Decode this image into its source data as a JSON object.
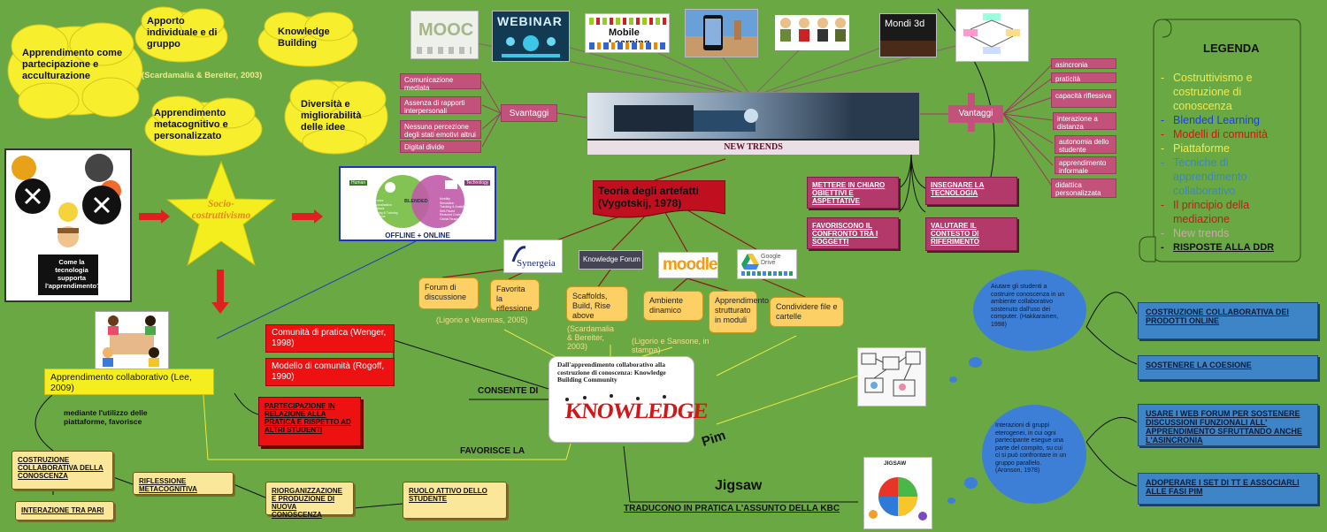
{
  "clouds": {
    "apprendimento_partecipazione": "Apprendimento come partecipazione e acculturazione",
    "apporto": "Apporto individuale e di gruppo",
    "knowledge_building": "Knowledge Building",
    "metacognitivo": "Apprendimento metacognitivo e personalizzato",
    "diversita": "Diversità e migliorabilità delle idee"
  },
  "citation_scardamalia": "(Scardamalia & Bereiter, 2003)",
  "intro_caption": "Come la tecnologia supporta l'apprendimento?",
  "star_label": "Socio-costruttivismo",
  "blended": {
    "left_header": "Human",
    "right_header": "Technology",
    "center": "BLENDED",
    "left_items": [
      "Instructor",
      "Personalization",
      "Feedback",
      "Planning & Tutoring",
      "Relevance",
      "Discipline"
    ],
    "right_items": [
      "Mobility",
      "Simulation",
      "Tracking & Analytics",
      "Self-Paced",
      "Reduced Costs",
      "Global Reach"
    ],
    "caption": "OFFLINE + ONLINE"
  },
  "trend_tiles": {
    "mooc": "MOOC",
    "webinar": "WEBINAR",
    "mobile_learning": "Mobile Learning",
    "mondi_3d": "Mondi 3d"
  },
  "new_trends_label": "NEW TRENDS",
  "svantaggi": {
    "label": "Svantaggi",
    "items": [
      "Comunicazione mediata",
      "Assenza di rapporti interpersonali",
      "Nessuna percezione degli stati emotivi altrui",
      "Digital divide"
    ]
  },
  "vantaggi": {
    "label": "Vantaggi",
    "items": [
      "asincronia",
      "praticità",
      "capacità riflessiva",
      "interazione a distanza",
      "autonomia dello studente",
      "apprendimento informale",
      "didattica personalizzata"
    ]
  },
  "mediation": [
    "METTERE IN CHIARO OBIETTIVI E ASPETTATIVE",
    "INSEGNARE LA TECNOLOGIA",
    "FAVORISCONO IL CONFRONTO TRA I SOGGETTI",
    "VALUTARE IL CONTESTO DI RIFERIMENTO"
  ],
  "teoria": "Teoria degli artefatti (Vygotskij, 1978)",
  "platforms": {
    "synergeia": "Synergeia",
    "knowledge_forum": "Knowledge Forum",
    "moodle": "moodle",
    "google_drive": "Google Drive"
  },
  "platform_features": [
    "Forum di discussione",
    "Favorita la riflessione",
    "Scaffolds, Build, Rise above",
    "Ambiente dinamico",
    "Apprendimento strutturato in moduli",
    "Condividere file e cartelle"
  ],
  "platform_citations": [
    "(Ligorio e Veermas, 2005)",
    "(Scardamalia & Bereiter, 2003)",
    "(Ligorio e Sansone, in stampa)"
  ],
  "legend": {
    "title": "LEGENDA",
    "items": [
      {
        "text": "Costruttivismo e costruzione di conoscenza",
        "color": "#f5e94a"
      },
      {
        "text": "Blended Learning",
        "color": "#1a3cff"
      },
      {
        "text": "Modelli di comunità",
        "color": "#e01010"
      },
      {
        "text": "Piattaforme",
        "color": "#f5e94a"
      },
      {
        "text": "Tecniche di apprendimento collaborativo",
        "color": "#3d85c6"
      },
      {
        "text": "Il principio della mediazione",
        "color": "#c01c1c"
      },
      {
        "text": "New trends",
        "color": "#d7a1b5"
      },
      {
        "text": "RISPOSTE ALLA DDR",
        "color": "#111111"
      }
    ]
  },
  "comunita": [
    "Comunità di pratica (Wenger, 1998)",
    "Modello di comunità (Rogoff, 1990)"
  ],
  "partecipazione": "PARTECIPAZIONE IN RELAZIONE ALLA PRATICA E RISPETTO AD ALTRI STUDENTI",
  "collaborativo": "Apprendimento collaborativo (Lee, 2009)",
  "mediante": "mediante l'utilizzo delle piattaforme, favorisce",
  "consente_di": "CONSENTE DI",
  "favorisce_la": "FAVORISCE LA",
  "kbc_title": "Dall'apprendimento collaborativo alla costruzione di conoscenza: Knowledge Building Community",
  "knowledge_word": "KNOWLEDGE",
  "scrolls": [
    "COSTRUZIONE COLLABORATIVA DELLA CONOSCENZA",
    "INTERAZIONE TRA PARI",
    "RIFLESSIONE METACOGNITIVA",
    "RIORGANIZZAZIONE E PRODUZIONE DI NUOVA CONOSCENZA",
    "RUOLO ATTIVO DELLO STUDENTE"
  ],
  "pim": "Pim",
  "jigsaw": "Jigsaw",
  "jigsaw_tile": "JIGSAW",
  "traducono": "TRADUCONO IN PRATICA L'ASSUNTO DELLA KBC",
  "bubbles": [
    "Aiutare gli studenti a costruire conoscenza in un ambiente collaborativo sostenuto dall'uso dei computer. (Hakkarainen, 1998)",
    "Interazioni di gruppi eterogenei, in cui ogni partecipante esegue una parte del compito, su cui ci si può confrontare in un gruppo parallelo. (Aronson, 1978)"
  ],
  "ddr": [
    "COSTRUZIONE COLLABORATIVA DEI PRODOTTI ONLINE",
    "SOSTENERE LA COESIONE",
    "USARE I WEB FORUM PER SOSTENERE DISCUSSIONI FUNZIONALI ALL' APPRENDIMENTO SFRUTTANDO ANCHE L'ASINCRONIA",
    "ADOPERARE I SET DI TT E ASSOCIARLI ALLE FASI PIM"
  ]
}
